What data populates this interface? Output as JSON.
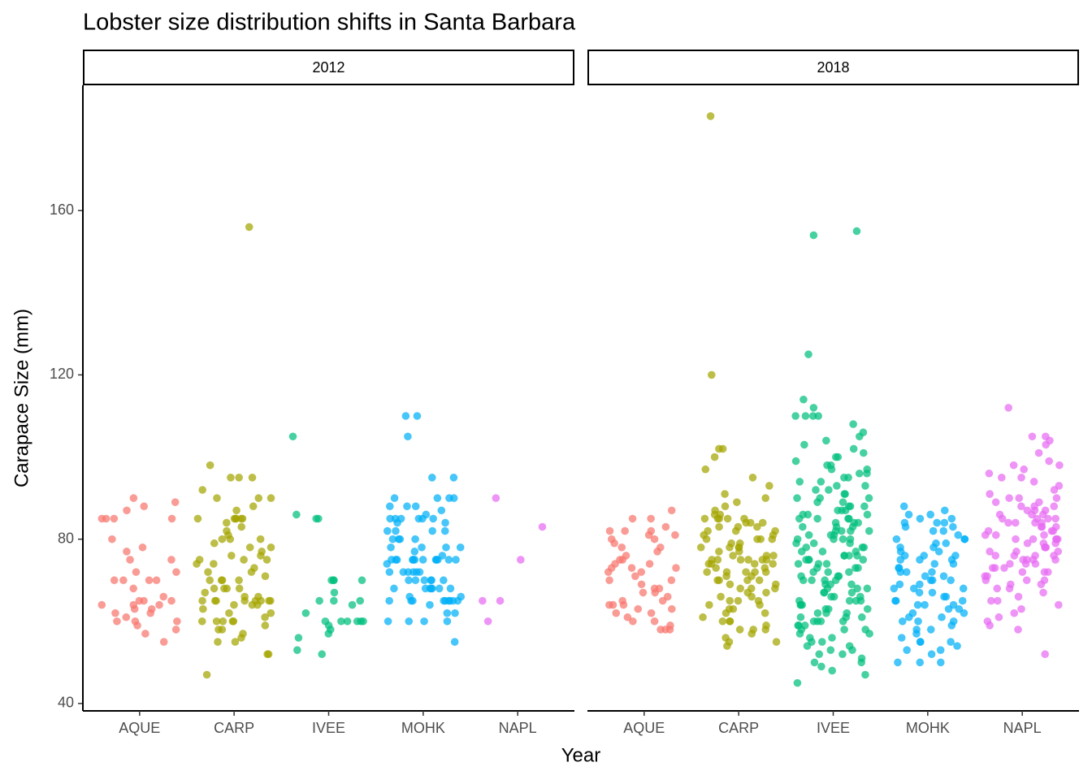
{
  "chart_data": {
    "type": "strip",
    "title": "Lobster size distribution shifts in Santa Barbara",
    "x_label": "Year",
    "y_label": "Carapace Size (mm)",
    "ylim": [
      38.2,
      190.5
    ],
    "yticks": [
      40,
      80,
      120,
      160
    ],
    "categories": [
      "AQUE",
      "CARP",
      "IVEE",
      "MOHK",
      "NAPL"
    ],
    "facets": [
      {
        "label": "2012",
        "series": [
          {
            "name": "AQUE",
            "color": "#F8766D",
            "values": [
              64,
              65,
              85,
              88,
              75,
              72,
              70,
              70,
              77,
              78,
              89,
              55,
              62,
              60,
              66,
              60,
              85,
              63,
              62,
              61,
              64,
              65,
              63,
              64,
              80,
              87,
              65,
              85,
              85,
              90,
              72,
              70,
              70,
              68,
              60,
              57,
              58,
              75,
              59
            ]
          },
          {
            "name": "CARP",
            "color": "#A3A500",
            "values": [
              98,
              95,
              95,
              95,
              90,
              90,
              88,
              85,
              85,
              85,
              85,
              85,
              85,
              82,
              80,
              80,
              81,
              79,
              78,
              78,
              77,
              76,
              75,
              75,
              75,
              74,
              73,
              72,
              71,
              70,
              70,
              70,
              68,
              68,
              68,
              67,
              66,
              65,
              65,
              65,
              65,
              65,
              65,
              65,
              64,
              64,
              64,
              63,
              62,
              62,
              61,
              60,
              60,
              60,
              60,
              59,
              58,
              58,
              57,
              56,
              55,
              55,
              52,
              52,
              47,
              156,
              92,
              90,
              87,
              84,
              83,
              80,
              76,
              74,
              72,
              70,
              68,
              66,
              65,
              60
            ]
          },
          {
            "name": "IVEE",
            "color": "#00BF7D",
            "values": [
              105,
              86,
              85,
              85,
              70,
              70,
              70,
              70,
              67,
              65,
              65,
              65,
              64,
              62,
              60,
              60,
              60,
              60,
              60,
              59,
              58,
              57,
              56,
              53,
              52,
              60
            ]
          },
          {
            "name": "MOHK",
            "color": "#00B0F6",
            "values": [
              110,
              110,
              105,
              95,
              95,
              90,
              90,
              90,
              90,
              88,
              88,
              87,
              85,
              85,
              85,
              85,
              85,
              85,
              84,
              82,
              82,
              82,
              82,
              80,
              80,
              80,
              78,
              78,
              78,
              77,
              76,
              75,
              75,
              75,
              75,
              75,
              75,
              75,
              75,
              75,
              75,
              75,
              75,
              72,
              72,
              72,
              72,
              72,
              70,
              70,
              70,
              70,
              70,
              68,
              68,
              68,
              68,
              68,
              68,
              66,
              65,
              65,
              65,
              65,
              65,
              65,
              65,
              65,
              65,
              62,
              60,
              60,
              60,
              60,
              55,
              88,
              86,
              84,
              80,
              78,
              74,
              72,
              70,
              68,
              66,
              64,
              62
            ]
          },
          {
            "name": "NAPL",
            "color": "#E76BF3",
            "values": [
              90,
              83,
              75,
              65,
              60,
              65
            ]
          }
        ]
      },
      {
        "label": "2018",
        "series": [
          {
            "name": "AQUE",
            "color": "#F8766D",
            "values": [
              87,
              85,
              83,
              82,
              82,
              82,
              81,
              81,
              80,
              80,
              79,
              78,
              78,
              77,
              76,
              75,
              75,
              74,
              74,
              73,
              73,
              73,
              72,
              72,
              71,
              70,
              70,
              69,
              68,
              68,
              67,
              67,
              66,
              65,
              65,
              64,
              64,
              64,
              63,
              63,
              62,
              62,
              61,
              60,
              60,
              59,
              58,
              58,
              58,
              85
            ]
          },
          {
            "name": "CARP",
            "color": "#A3A500",
            "values": [
              183,
              120,
              102,
              102,
              100,
              97,
              95,
              93,
              91,
              90,
              89,
              88,
              87,
              86,
              86,
              85,
              85,
              85,
              85,
              85,
              84,
              84,
              84,
              83,
              83,
              83,
              82,
              82,
              82,
              81,
              81,
              80,
              80,
              80,
              80,
              79,
              79,
              78,
              78,
              78,
              77,
              77,
              76,
              76,
              76,
              75,
              75,
              75,
              75,
              75,
              75,
              74,
              74,
              74,
              73,
              73,
              72,
              72,
              72,
              72,
              71,
              71,
              70,
              70,
              70,
              70,
              69,
              69,
              68,
              68,
              67,
              67,
              66,
              66,
              65,
              65,
              65,
              64,
              64,
              63,
              63,
              62,
              62,
              61,
              60,
              60,
              60,
              59,
              58,
              58,
              58,
              57,
              56,
              55,
              55,
              54,
              78,
              72,
              68,
              74
            ]
          },
          {
            "name": "IVEE",
            "color": "#00BF7D",
            "values": [
              155,
              154,
              125,
              114,
              112,
              110,
              110,
              110,
              110,
              108,
              106,
              105,
              104,
              103,
              102,
              101,
              100,
              100,
              99,
              98,
              98,
              97,
              97,
              96,
              96,
              95,
              95,
              94,
              94,
              93,
              93,
              92,
              92,
              91,
              91,
              90,
              90,
              90,
              89,
              89,
              88,
              88,
              88,
              87,
              87,
              87,
              86,
              86,
              86,
              85,
              85,
              85,
              85,
              84,
              84,
              84,
              83,
              83,
              83,
              82,
              82,
              82,
              81,
              81,
              81,
              80,
              80,
              80,
              80,
              79,
              79,
              79,
              78,
              78,
              78,
              77,
              77,
              77,
              76,
              76,
              76,
              75,
              75,
              75,
              75,
              74,
              74,
              74,
              73,
              73,
              73,
              72,
              72,
              72,
              71,
              71,
              71,
              70,
              70,
              70,
              70,
              69,
              69,
              69,
              68,
              68,
              68,
              67,
              67,
              67,
              66,
              66,
              66,
              65,
              65,
              65,
              65,
              64,
              64,
              64,
              63,
              63,
              63,
              62,
              62,
              62,
              61,
              61,
              61,
              60,
              60,
              60,
              60,
              59,
              59,
              59,
              58,
              58,
              58,
              57,
              57,
              56,
              56,
              55,
              55,
              54,
              54,
              53,
              53,
              52,
              52,
              51,
              50,
              50,
              49,
              48,
              47,
              45,
              82,
              76
            ]
          },
          {
            "name": "MOHK",
            "color": "#00B0F6",
            "values": [
              87,
              86,
              86,
              85,
              85,
              84,
              84,
              83,
              83,
              82,
              82,
              81,
              80,
              80,
              79,
              79,
              78,
              78,
              77,
              77,
              76,
              76,
              75,
              75,
              75,
              74,
              74,
              73,
              73,
              72,
              72,
              71,
              71,
              70,
              70,
              70,
              69,
              69,
              68,
              68,
              67,
              67,
              66,
              66,
              65,
              65,
              65,
              64,
              64,
              63,
              63,
              62,
              62,
              61,
              61,
              60,
              60,
              59,
              58,
              58,
              57,
              56,
              55,
              55,
              55,
              54,
              53,
              53,
              52,
              50,
              50,
              50,
              88,
              84,
              80,
              76,
              72,
              68,
              64,
              60
            ]
          },
          {
            "name": "NAPL",
            "color": "#E76BF3",
            "values": [
              112,
              105,
              105,
              104,
              103,
              101,
              99,
              98,
              98,
              97,
              96,
              95,
              95,
              94,
              93,
              92,
              91,
              90,
              90,
              90,
              89,
              89,
              88,
              88,
              88,
              87,
              87,
              87,
              86,
              86,
              86,
              85,
              85,
              85,
              85,
              84,
              84,
              84,
              83,
              83,
              83,
              82,
              82,
              82,
              81,
              81,
              81,
              80,
              80,
              80,
              80,
              79,
              79,
              79,
              78,
              78,
              78,
              77,
              77,
              77,
              76,
              76,
              76,
              75,
              75,
              75,
              75,
              74,
              74,
              74,
              73,
              73,
              73,
              72,
              72,
              72,
              71,
              71,
              70,
              70,
              70,
              69,
              69,
              68,
              68,
              67,
              66,
              65,
              65,
              64,
              63,
              62,
              61,
              60,
              59,
              58,
              52,
              84,
              80,
              76
            ]
          }
        ]
      }
    ]
  }
}
